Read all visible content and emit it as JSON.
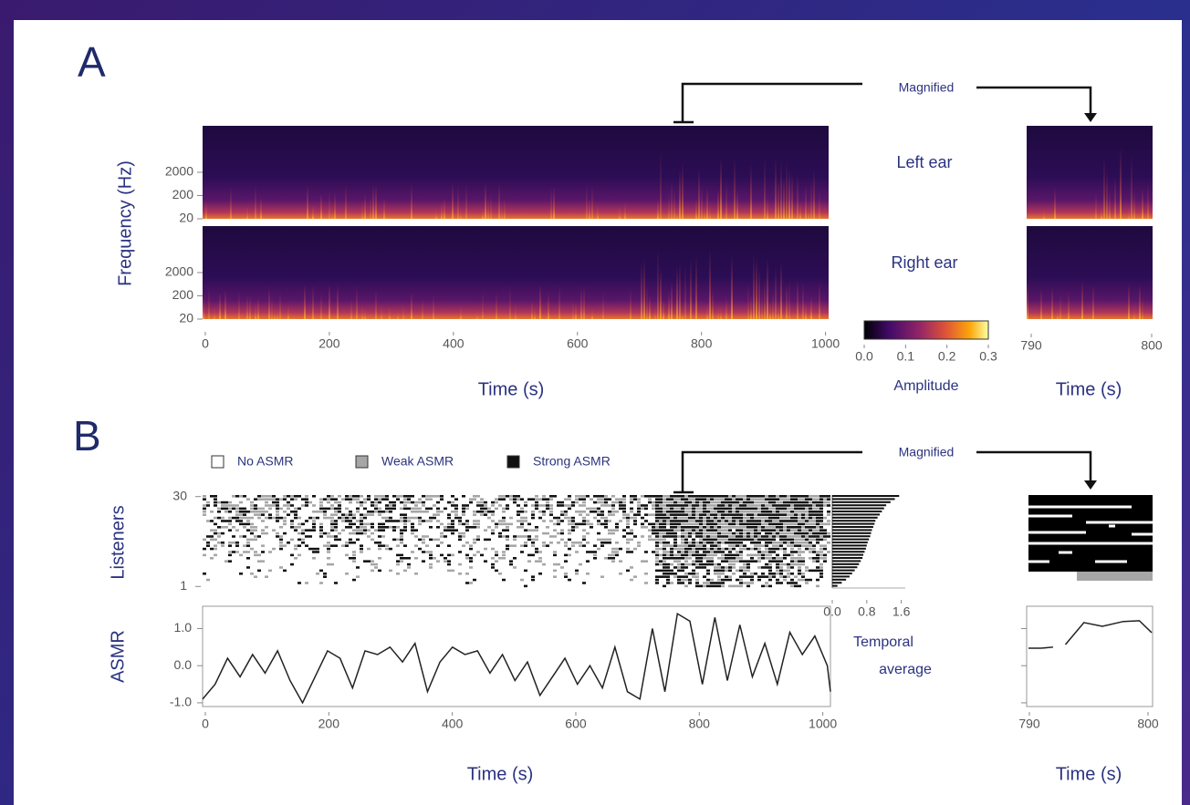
{
  "panel_a": {
    "label": "A",
    "magnified": "Magnified",
    "y_label": "Frequency (Hz)",
    "yscale": "log",
    "ylim": [
      20,
      200000
    ],
    "spectrograms": [
      {
        "name": "Left ear",
        "yticks": [
          20,
          200,
          2000
        ]
      },
      {
        "name": "Right ear",
        "yticks": [
          20,
          200,
          2000
        ]
      }
    ],
    "xlim": [
      0,
      1005
    ],
    "xticks": [
      0,
      200,
      400,
      600,
      800,
      1000
    ],
    "x_label": "Time (s)",
    "magnified_xlim": [
      790,
      800
    ],
    "magnified_xticks": [
      790,
      800
    ],
    "magnified_x_label": "Time (s)",
    "colorbar": {
      "lim": [
        0,
        0.3
      ],
      "ticks": [
        {
          "value": 0,
          "label": "0.0"
        },
        0.1,
        0.2,
        0.3
      ],
      "label": "Amplitude"
    }
  },
  "panel_b": {
    "label": "B",
    "magnified": "Magnified",
    "legend": [
      {
        "name": "No ASMR",
        "color": "#ffffff"
      },
      {
        "name": "Weak ASMR",
        "color": "#a6a6a6"
      },
      {
        "name": "Strong ASMR",
        "color": "#111111"
      }
    ],
    "raster": {
      "y_label": "Listeners",
      "yticks": [
        30,
        1
      ],
      "ylim": [
        1,
        30
      ]
    },
    "temporal_average": {
      "label_lines": [
        "Temporal",
        "average"
      ],
      "xlim": [
        0,
        1.65
      ],
      "xticks": [
        {
          "value": 0,
          "label": "0.0"
        },
        0.8,
        1.6
      ],
      "values": [
        1.55,
        1.45,
        1.35,
        1.25,
        1.2,
        1.15,
        1.1,
        1.05,
        1.0,
        0.98,
        0.95,
        0.92,
        0.9,
        0.88,
        0.85,
        0.82,
        0.8,
        0.78,
        0.75,
        0.72,
        0.7,
        0.66,
        0.62,
        0.58,
        0.52,
        0.46,
        0.4,
        0.32,
        0.22,
        0.12
      ]
    },
    "asmr": {
      "y_label": "ASMR",
      "ylim": [
        -1.1,
        1.6
      ],
      "yticks": [
        {
          "value": 1,
          "label": "1.0"
        },
        {
          "value": 0,
          "label": "0.0"
        },
        {
          "value": -1,
          "label": "-1.0"
        }
      ],
      "xlim": [
        0,
        1005
      ],
      "xticks": [
        0,
        200,
        400,
        600,
        800,
        1000
      ],
      "x_label": "Time (s)",
      "x": [
        0,
        20,
        40,
        60,
        80,
        100,
        120,
        140,
        160,
        180,
        200,
        220,
        240,
        260,
        280,
        300,
        320,
        340,
        360,
        380,
        400,
        420,
        440,
        460,
        480,
        500,
        520,
        540,
        560,
        580,
        600,
        620,
        640,
        660,
        680,
        700,
        720,
        740,
        760,
        780,
        800,
        820,
        840,
        860,
        880,
        900,
        920,
        940,
        960,
        980,
        1000,
        1005
      ],
      "values": [
        -0.9,
        -0.5,
        0.2,
        -0.3,
        0.3,
        -0.2,
        0.4,
        -0.4,
        -1.0,
        -0.3,
        0.4,
        0.2,
        -0.6,
        0.4,
        0.3,
        0.5,
        0.1,
        0.6,
        -0.7,
        0.1,
        0.5,
        0.3,
        0.4,
        -0.2,
        0.3,
        -0.4,
        0.1,
        -0.8,
        -0.3,
        0.2,
        -0.5,
        0.0,
        -0.6,
        0.5,
        -0.7,
        -0.9,
        1.0,
        -0.7,
        1.4,
        1.2,
        -0.5,
        1.3,
        -0.4,
        1.1,
        -0.3,
        0.6,
        -0.5,
        0.9,
        0.3,
        0.8,
        0.0,
        -0.7
      ],
      "magnified_xlim": [
        790,
        800
      ],
      "magnified_xticks": [
        790,
        800
      ],
      "magnified_x_label": "Time (s)",
      "magnified_x": [
        790,
        791,
        792,
        792.5,
        793,
        794.5,
        796,
        797.7,
        799,
        800
      ],
      "magnified_values": [
        0.47,
        0.47,
        0.5,
        null,
        0.57,
        1.16,
        1.06,
        1.19,
        1.21,
        0.89
      ]
    }
  }
}
